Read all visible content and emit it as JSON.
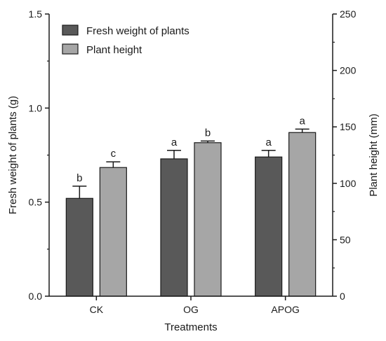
{
  "chart_data": {
    "type": "bar",
    "categories": [
      "CK",
      "OG",
      "APOG"
    ],
    "xlabel": "Treatments",
    "left_axis": {
      "label": "Fresh weight of plants (g)",
      "lim": [
        0,
        1.5
      ],
      "ticks": [
        "0.0",
        "0.5",
        "1.0",
        "1.5"
      ]
    },
    "right_axis": {
      "label": "Plant height (mm)",
      "lim": [
        0,
        250
      ],
      "ticks": [
        "0",
        "50",
        "100",
        "150",
        "200",
        "250"
      ]
    },
    "series": [
      {
        "name": "Fresh weight of plants",
        "axis": "left",
        "color": "#595959",
        "values": [
          0.52,
          0.73,
          0.74
        ],
        "errors": [
          0.065,
          0.045,
          0.035
        ],
        "letters": [
          "b",
          "a",
          "a"
        ]
      },
      {
        "name": "Plant height",
        "axis": "right",
        "color": "#a6a6a6",
        "values": [
          114,
          136,
          145
        ],
        "errors": [
          5,
          1.5,
          3
        ],
        "letters": [
          "c",
          "b",
          "a"
        ]
      }
    ],
    "legend": "top-left",
    "grid": false
  }
}
